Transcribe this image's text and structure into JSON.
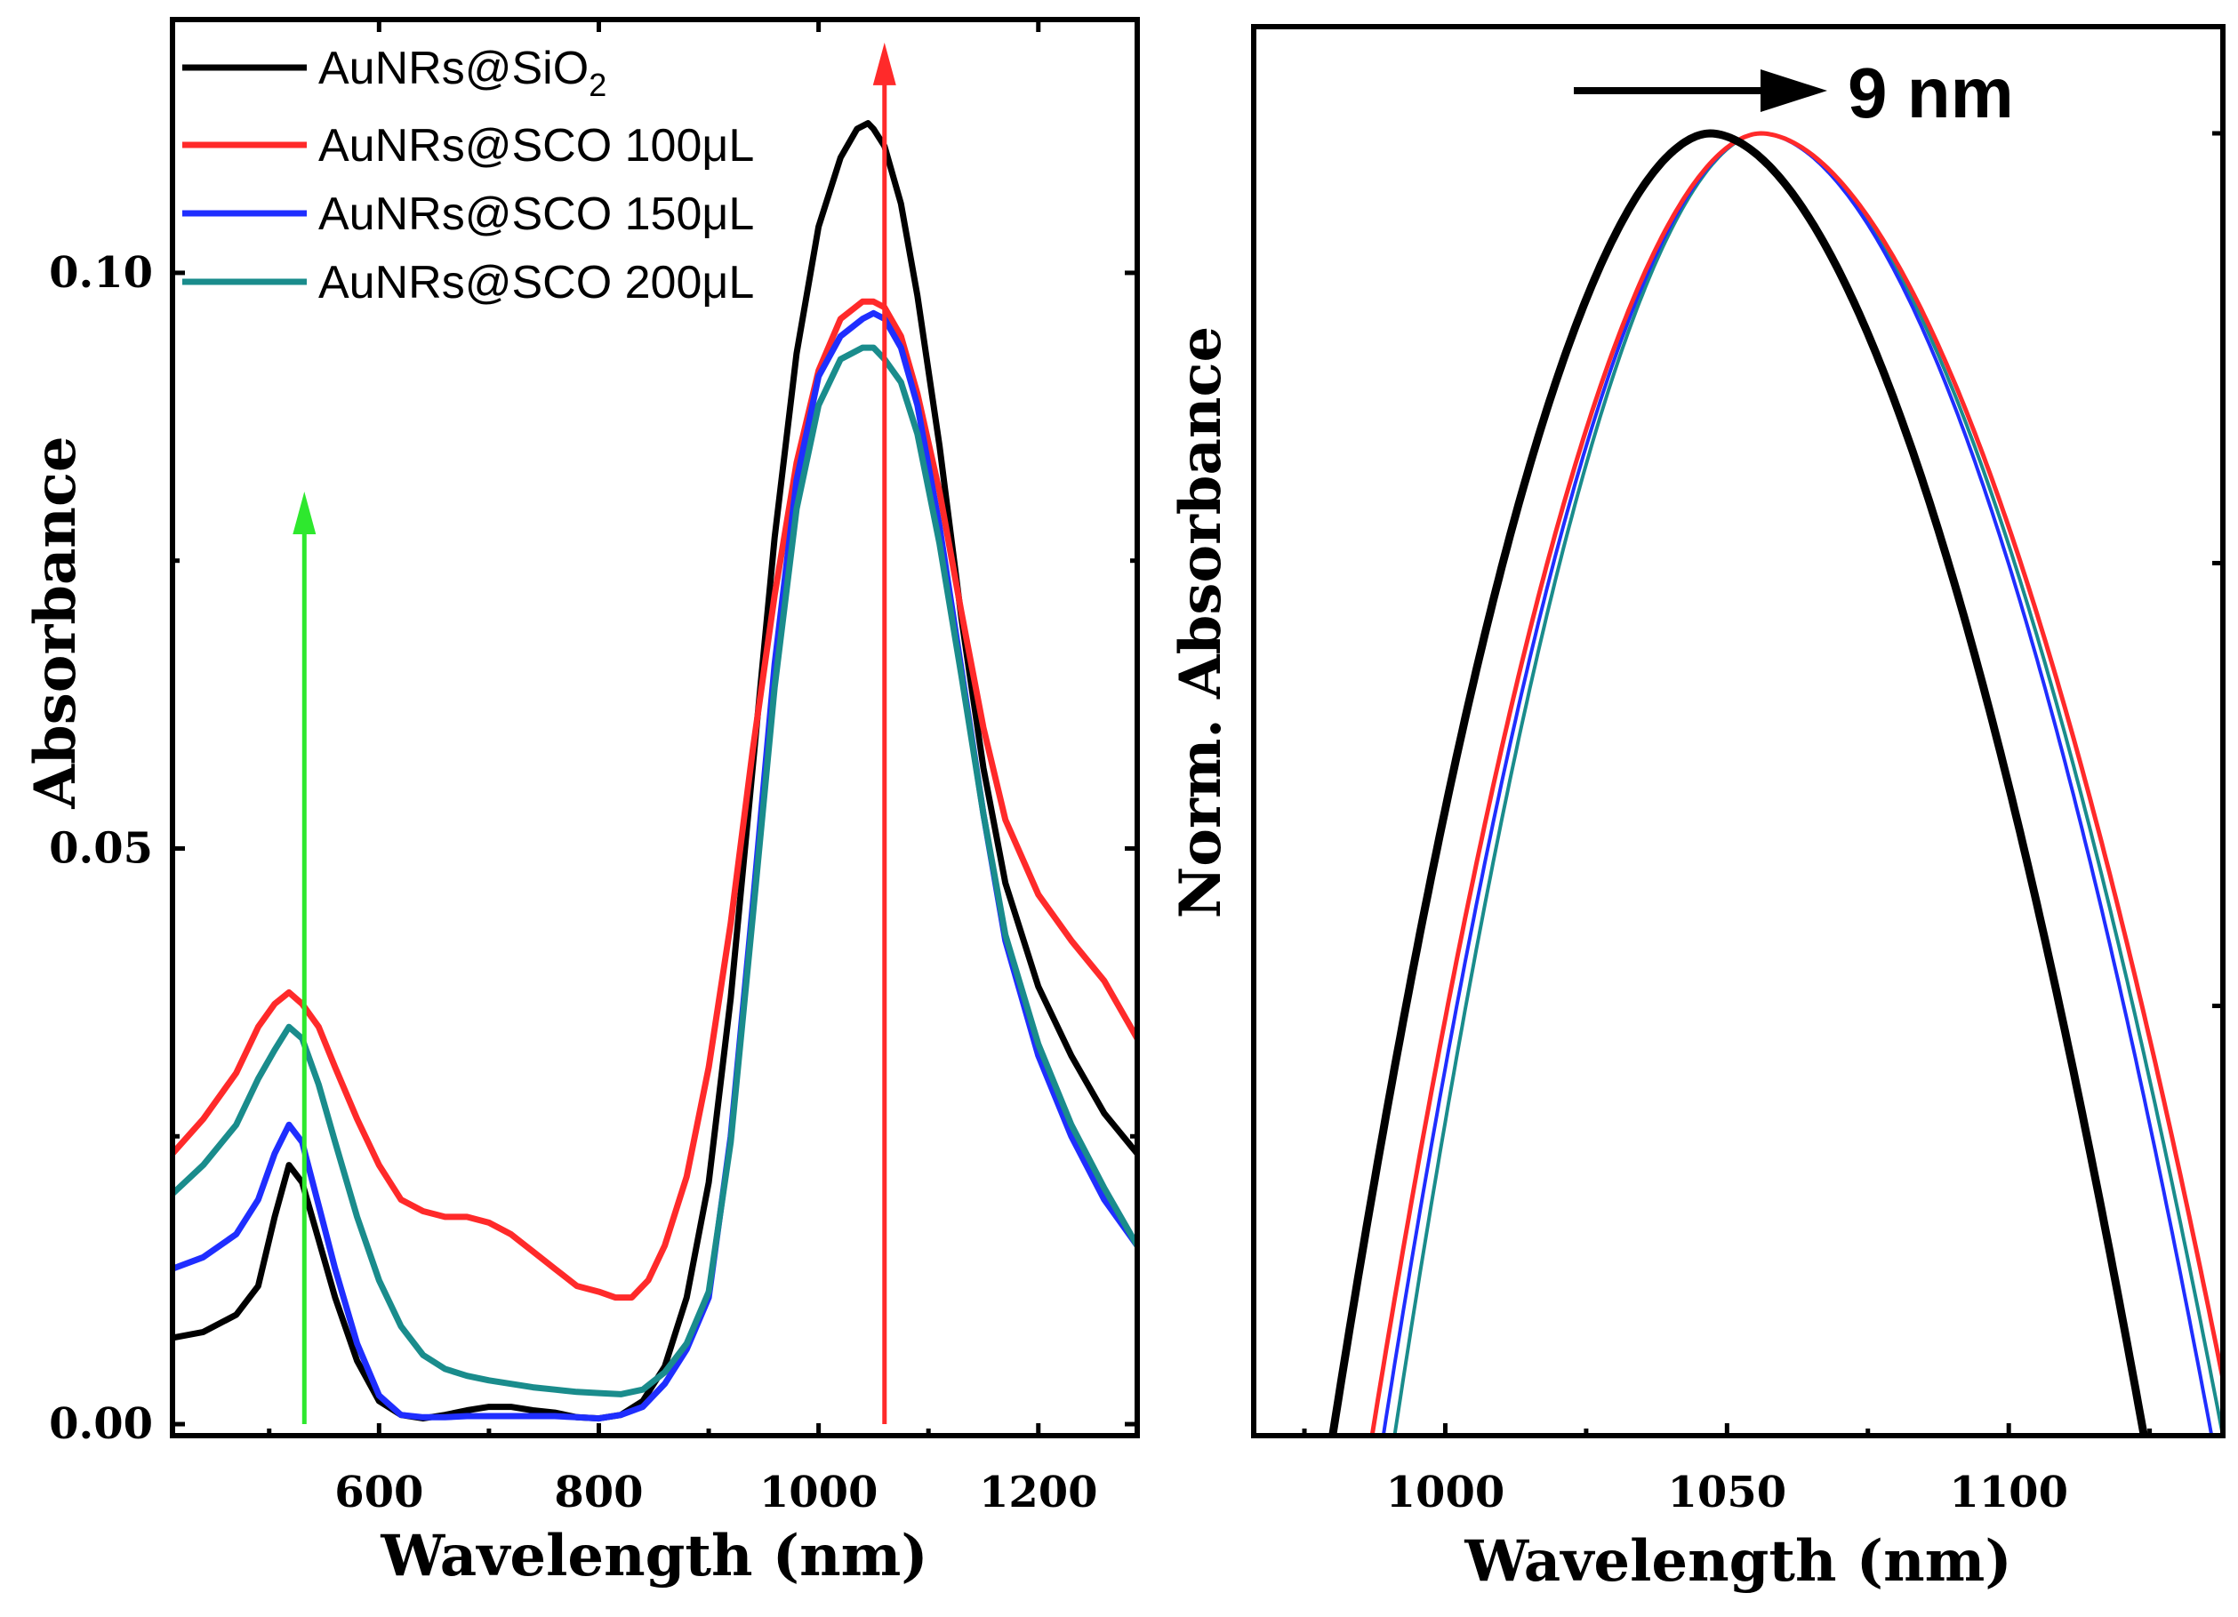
{
  "colors": {
    "black": "#000000",
    "red": "#ff2a2a",
    "blue": "#1f2eff",
    "teal": "#1a8c8c",
    "green": "#2ee82e"
  },
  "chart_data": [
    {
      "type": "line",
      "xlabel": "Wavelength (nm)",
      "ylabel": "Absorbance",
      "xlim": [
        412,
        1290
      ],
      "ylim": [
        -0.001,
        0.122
      ],
      "xticks": [
        600,
        800,
        1000,
        1200
      ],
      "yticks": [
        0.0,
        0.05,
        0.1
      ],
      "ytick_labels": [
        "0.00",
        "0.05",
        "0.10"
      ],
      "legend_position": "top-left",
      "legend": [
        {
          "label": "AuNRs@SiO",
          "sub": "2"
        },
        {
          "label": "AuNRs@SCO 100μL",
          "sub": ""
        },
        {
          "label": "AuNRs@SCO 150μL",
          "sub": ""
        },
        {
          "label": "AuNRs@SCO 200μL",
          "sub": ""
        }
      ],
      "arrows": [
        {
          "color": "green",
          "x": 532,
          "y_start": 0.0,
          "y_end": 0.081,
          "direction": "up"
        },
        {
          "color": "red",
          "x": 1060,
          "y_start": 0.0,
          "y_end": 0.12,
          "direction": "up"
        }
      ],
      "series": [
        {
          "name": "AuNRs@SiO2",
          "color": "black",
          "x": [
            412,
            440,
            470,
            490,
            505,
            518,
            530,
            545,
            560,
            580,
            600,
            620,
            640,
            660,
            680,
            700,
            720,
            740,
            760,
            780,
            800,
            820,
            840,
            860,
            880,
            900,
            920,
            940,
            960,
            980,
            1000,
            1020,
            1035,
            1045,
            1050,
            1060,
            1075,
            1090,
            1110,
            1130,
            1150,
            1170,
            1200,
            1230,
            1260,
            1290
          ],
          "y": [
            0.0075,
            0.008,
            0.0095,
            0.012,
            0.018,
            0.0225,
            0.021,
            0.016,
            0.011,
            0.0055,
            0.002,
            0.0008,
            0.0005,
            0.0008,
            0.0012,
            0.0015,
            0.0015,
            0.0012,
            0.001,
            0.0006,
            0.0005,
            0.0008,
            0.002,
            0.005,
            0.011,
            0.021,
            0.037,
            0.057,
            0.077,
            0.093,
            0.104,
            0.11,
            0.1125,
            0.113,
            0.1125,
            0.111,
            0.106,
            0.098,
            0.085,
            0.07,
            0.057,
            0.047,
            0.038,
            0.032,
            0.027,
            0.0235
          ]
        },
        {
          "name": "AuNRs@SCO 100μL",
          "color": "red",
          "x": [
            412,
            440,
            470,
            490,
            505,
            518,
            530,
            545,
            560,
            580,
            600,
            620,
            640,
            660,
            680,
            700,
            720,
            740,
            760,
            780,
            800,
            815,
            830,
            845,
            860,
            880,
            900,
            920,
            940,
            960,
            980,
            1000,
            1020,
            1040,
            1050,
            1060,
            1075,
            1090,
            1110,
            1130,
            1150,
            1170,
            1200,
            1230,
            1260,
            1290
          ],
          "y": [
            0.0235,
            0.0265,
            0.0305,
            0.0345,
            0.0365,
            0.0375,
            0.0365,
            0.0345,
            0.031,
            0.0265,
            0.0225,
            0.0195,
            0.0185,
            0.018,
            0.018,
            0.0175,
            0.0165,
            0.015,
            0.0135,
            0.012,
            0.0115,
            0.011,
            0.011,
            0.0125,
            0.0155,
            0.0215,
            0.031,
            0.0435,
            0.0585,
            0.072,
            0.0835,
            0.0915,
            0.096,
            0.0975,
            0.0975,
            0.097,
            0.0945,
            0.0895,
            0.081,
            0.0705,
            0.0605,
            0.0525,
            0.046,
            0.042,
            0.0385,
            0.0335
          ]
        },
        {
          "name": "AuNRs@SCO 150μL",
          "color": "blue",
          "x": [
            412,
            440,
            470,
            490,
            505,
            518,
            530,
            545,
            560,
            580,
            600,
            620,
            640,
            660,
            680,
            700,
            720,
            740,
            760,
            780,
            800,
            820,
            840,
            860,
            880,
            900,
            920,
            940,
            960,
            980,
            1000,
            1020,
            1040,
            1050,
            1060,
            1075,
            1090,
            1110,
            1130,
            1150,
            1170,
            1200,
            1230,
            1260,
            1290
          ],
          "y": [
            0.0135,
            0.0145,
            0.0165,
            0.0195,
            0.0235,
            0.026,
            0.0245,
            0.019,
            0.0135,
            0.007,
            0.0025,
            0.0008,
            0.0006,
            0.0006,
            0.0007,
            0.0007,
            0.0007,
            0.0007,
            0.0007,
            0.0006,
            0.0005,
            0.0008,
            0.0015,
            0.0035,
            0.0065,
            0.011,
            0.025,
            0.045,
            0.066,
            0.082,
            0.091,
            0.0945,
            0.096,
            0.0965,
            0.096,
            0.0935,
            0.0885,
            0.078,
            0.0655,
            0.053,
            0.042,
            0.032,
            0.025,
            0.0195,
            0.0155
          ]
        },
        {
          "name": "AuNRs@SCO 200μL",
          "color": "teal",
          "x": [
            412,
            440,
            470,
            490,
            505,
            518,
            530,
            545,
            560,
            580,
            600,
            620,
            640,
            660,
            680,
            700,
            720,
            740,
            760,
            780,
            800,
            820,
            840,
            860,
            880,
            900,
            920,
            940,
            960,
            980,
            1000,
            1020,
            1040,
            1050,
            1060,
            1075,
            1090,
            1110,
            1130,
            1150,
            1170,
            1200,
            1230,
            1260,
            1290
          ],
          "y": [
            0.02,
            0.0225,
            0.026,
            0.03,
            0.0325,
            0.0345,
            0.0335,
            0.0295,
            0.0245,
            0.018,
            0.0125,
            0.0085,
            0.006,
            0.0048,
            0.0042,
            0.0038,
            0.0035,
            0.0032,
            0.003,
            0.0028,
            0.0027,
            0.0026,
            0.003,
            0.0045,
            0.007,
            0.0115,
            0.0245,
            0.044,
            0.064,
            0.0795,
            0.0885,
            0.0925,
            0.0935,
            0.0935,
            0.0925,
            0.0905,
            0.086,
            0.0765,
            0.065,
            0.053,
            0.0425,
            0.033,
            0.026,
            0.0205,
            0.0155
          ]
        }
      ]
    },
    {
      "type": "line",
      "xlabel": "Wavelength (nm)",
      "ylabel": "Norm. Absorbance",
      "xlim": [
        966,
        1138
      ],
      "ylim": [
        0.0,
        1.0
      ],
      "xticks": [
        1000,
        1050,
        1100
      ],
      "yticks": [],
      "annotation": {
        "text": "9 nm",
        "arrow_direction": "right"
      },
      "series": [
        {
          "name": "AuNRs@SiO2",
          "color": "black",
          "peak": 1047,
          "left_zero": 980,
          "right_zero": 1124
        },
        {
          "name": "AuNRs@SCO 100μL",
          "color": "red",
          "peak": 1056,
          "left_zero": 987,
          "right_zero": 1140
        },
        {
          "name": "AuNRs@SCO 150μL",
          "color": "blue",
          "peak": 1056,
          "left_zero": 989,
          "right_zero": 1136
        },
        {
          "name": "AuNRs@SCO 200μL",
          "color": "teal",
          "peak": 1056,
          "left_zero": 991,
          "right_zero": 1138
        }
      ]
    }
  ]
}
